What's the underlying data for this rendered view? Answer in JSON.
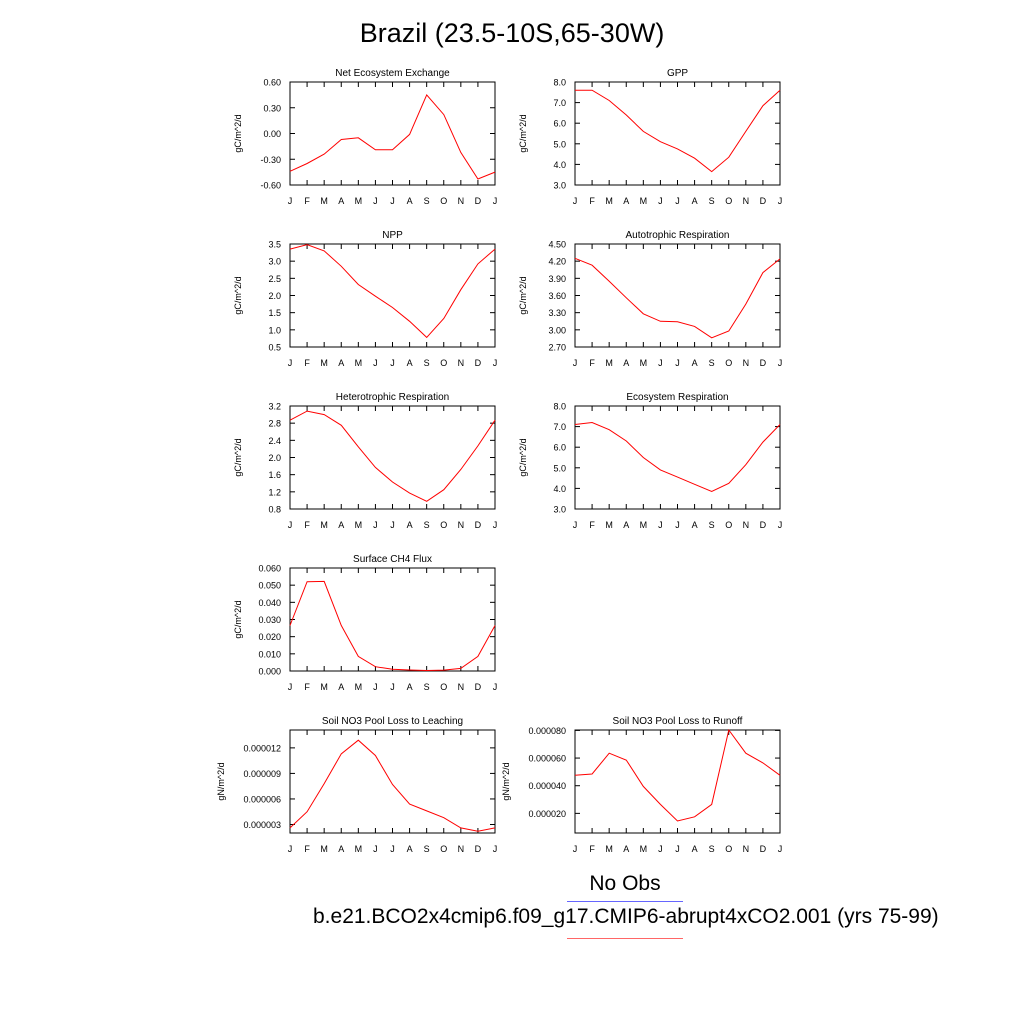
{
  "page": {
    "title": "Brazil (23.5-10S,65-30W)"
  },
  "legend": {
    "obs_label": "No Obs",
    "obs_color": "#6666ff",
    "model_label": "b.e21.BCO2x4cmip6.f09_g17.CMIP6-abrupt4xCO2.001 (yrs 75-99)",
    "model_color": "#ff6666"
  },
  "chart_data": [
    {
      "type": "line",
      "title": "Net Ecosystem Exchange",
      "ylabel": "gC/m^2/d",
      "x": [
        "J",
        "F",
        "M",
        "A",
        "M",
        "J",
        "J",
        "A",
        "S",
        "O",
        "N",
        "D",
        "J"
      ],
      "ylim": [
        -0.6,
        0.6
      ],
      "yticks": [
        "0.60",
        "0.30",
        "0.00",
        "-0.30",
        "-0.60"
      ],
      "series": [
        {
          "color": "#ff0000",
          "values": [
            -0.44,
            -0.35,
            -0.24,
            -0.07,
            -0.05,
            -0.19,
            -0.19,
            -0.01,
            0.45,
            0.22,
            -0.22,
            -0.53,
            -0.45
          ]
        }
      ]
    },
    {
      "type": "line",
      "title": "GPP",
      "ylabel": "gC/m^2/d",
      "x": [
        "J",
        "F",
        "M",
        "A",
        "M",
        "J",
        "J",
        "A",
        "S",
        "O",
        "N",
        "D",
        "J"
      ],
      "ylim": [
        3.0,
        8.0
      ],
      "yticks": [
        "8.0",
        "7.0",
        "6.0",
        "5.0",
        "4.0",
        "3.0"
      ],
      "series": [
        {
          "color": "#ff0000",
          "values": [
            7.6,
            7.6,
            7.1,
            6.4,
            5.6,
            5.1,
            4.75,
            4.3,
            3.65,
            4.35,
            5.6,
            6.85,
            7.6
          ]
        }
      ]
    },
    {
      "type": "line",
      "title": "NPP",
      "ylabel": "gC/m^2/d",
      "x": [
        "J",
        "F",
        "M",
        "A",
        "M",
        "J",
        "J",
        "A",
        "S",
        "O",
        "N",
        "D",
        "J"
      ],
      "ylim": [
        0.5,
        3.5
      ],
      "yticks": [
        "3.5",
        "3.0",
        "2.5",
        "2.0",
        "1.5",
        "1.0",
        "0.5"
      ],
      "series": [
        {
          "color": "#ff0000",
          "values": [
            3.35,
            3.48,
            3.3,
            2.85,
            2.32,
            1.98,
            1.65,
            1.25,
            0.78,
            1.33,
            2.17,
            2.92,
            3.35
          ]
        }
      ]
    },
    {
      "type": "line",
      "title": "Autotrophic Respiration",
      "ylabel": "gC/m^2/d",
      "x": [
        "J",
        "F",
        "M",
        "A",
        "M",
        "J",
        "J",
        "A",
        "S",
        "O",
        "N",
        "D",
        "J"
      ],
      "ylim": [
        2.7,
        4.5
      ],
      "yticks": [
        "4.50",
        "4.20",
        "3.90",
        "3.60",
        "3.30",
        "3.00",
        "2.70"
      ],
      "series": [
        {
          "color": "#ff0000",
          "values": [
            4.25,
            4.13,
            3.85,
            3.56,
            3.28,
            3.15,
            3.14,
            3.06,
            2.86,
            2.98,
            3.45,
            4.0,
            4.24
          ]
        }
      ]
    },
    {
      "type": "line",
      "title": "Heterotrophic Respiration",
      "ylabel": "gC/m^2/d",
      "x": [
        "J",
        "F",
        "M",
        "A",
        "M",
        "J",
        "J",
        "A",
        "S",
        "O",
        "N",
        "D",
        "J"
      ],
      "ylim": [
        0.8,
        3.2
      ],
      "yticks": [
        "3.2",
        "2.8",
        "2.4",
        "2.0",
        "1.6",
        "1.2",
        "0.8"
      ],
      "series": [
        {
          "color": "#ff0000",
          "values": [
            2.87,
            3.08,
            3.0,
            2.75,
            2.25,
            1.77,
            1.43,
            1.17,
            0.98,
            1.25,
            1.72,
            2.27,
            2.87
          ]
        }
      ]
    },
    {
      "type": "line",
      "title": "Ecosystem Respiration",
      "ylabel": "gC/m^2/d",
      "x": [
        "J",
        "F",
        "M",
        "A",
        "M",
        "J",
        "J",
        "A",
        "S",
        "O",
        "N",
        "D",
        "J"
      ],
      "ylim": [
        3.0,
        8.0
      ],
      "yticks": [
        "8.0",
        "7.0",
        "6.0",
        "5.0",
        "4.0",
        "3.0"
      ],
      "series": [
        {
          "color": "#ff0000",
          "values": [
            7.1,
            7.2,
            6.85,
            6.3,
            5.5,
            4.9,
            4.55,
            4.2,
            3.85,
            4.25,
            5.15,
            6.25,
            7.1
          ]
        }
      ]
    },
    {
      "type": "line",
      "title": "Surface CH4 Flux",
      "ylabel": "gC/m^2/d",
      "x": [
        "J",
        "F",
        "M",
        "A",
        "M",
        "J",
        "J",
        "A",
        "S",
        "O",
        "N",
        "D",
        "J"
      ],
      "ylim": [
        0.0,
        0.06
      ],
      "yticks": [
        "0.060",
        "0.050",
        "0.040",
        "0.030",
        "0.020",
        "0.010",
        "0.000"
      ],
      "series": [
        {
          "color": "#ff0000",
          "values": [
            0.0265,
            0.052,
            0.0522,
            0.0265,
            0.0085,
            0.0025,
            0.001,
            0.0006,
            0.0003,
            0.0005,
            0.0015,
            0.0085,
            0.0265
          ]
        }
      ]
    },
    {
      "type": "line",
      "title": "Soil NO3 Pool Loss to Leaching",
      "ylabel": "gN/m^2/d",
      "x": [
        "J",
        "F",
        "M",
        "A",
        "M",
        "J",
        "J",
        "A",
        "S",
        "O",
        "N",
        "D",
        "J"
      ],
      "ylim": [
        2e-06,
        1.41e-05
      ],
      "yticks": [
        "0.000012",
        "0.000009",
        "0.000006",
        "0.000003"
      ],
      "series": [
        {
          "color": "#ff0000",
          "values": [
            2.6e-06,
            4.5e-06,
            7.8e-06,
            1.13e-05,
            1.29e-05,
            1.11e-05,
            7.7e-06,
            5.4e-06,
            4.6e-06,
            3.8e-06,
            2.6e-06,
            2.2e-06,
            2.6e-06
          ]
        }
      ]
    },
    {
      "type": "line",
      "title": "Soil NO3 Pool Loss to Runoff",
      "ylabel": "gN/m^2/d",
      "x": [
        "J",
        "F",
        "M",
        "A",
        "M",
        "J",
        "J",
        "A",
        "S",
        "O",
        "N",
        "D",
        "J"
      ],
      "ylim": [
        5.8e-06,
        8.03e-05
      ],
      "yticks": [
        "0.000080",
        "0.000060",
        "0.000040",
        "0.000020"
      ],
      "series": [
        {
          "color": "#ff0000",
          "values": [
            4.75e-05,
            4.85e-05,
            6.35e-05,
            5.85e-05,
            3.95e-05,
            2.65e-05,
            1.45e-05,
            1.75e-05,
            2.65e-05,
            8.03e-05,
            6.35e-05,
            5.65e-05,
            4.75e-05
          ]
        }
      ]
    }
  ]
}
